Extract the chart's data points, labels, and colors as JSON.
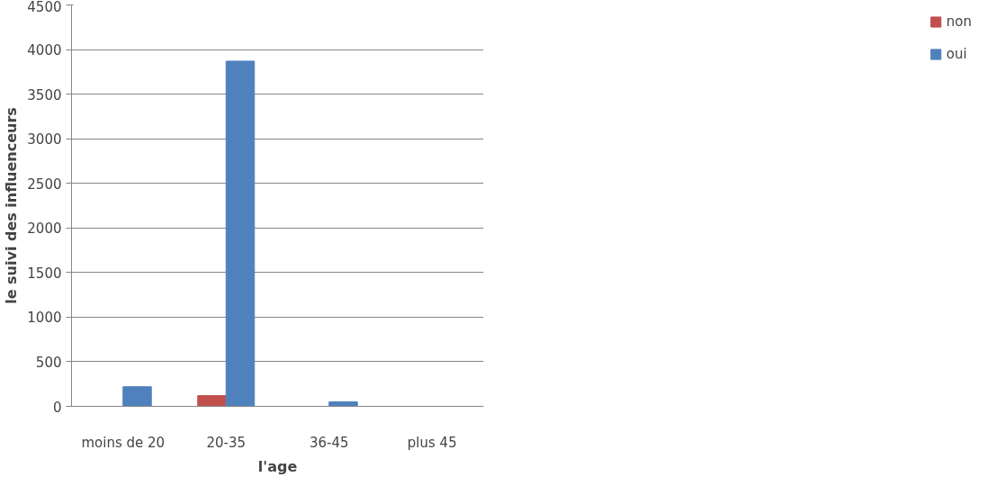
{
  "chart_data": {
    "type": "bar",
    "xlabel": "l'age",
    "ylabel": "le suivi des influenceurs",
    "categories": [
      "moins de 20",
      "20-35",
      "36-45",
      "plus 45"
    ],
    "series": [
      {
        "name": "non",
        "color": "#c0504d",
        "values": [
          0,
          120,
          0,
          0
        ]
      },
      {
        "name": "oui",
        "color": "#4f81bd",
        "values": [
          220,
          3870,
          50,
          0
        ]
      }
    ],
    "ylim": [
      0,
      4500
    ],
    "yticks": [
      0,
      500,
      1000,
      1500,
      2000,
      2500,
      3000,
      3500,
      4000,
      4500
    ],
    "grid": "y",
    "legend": "right"
  }
}
